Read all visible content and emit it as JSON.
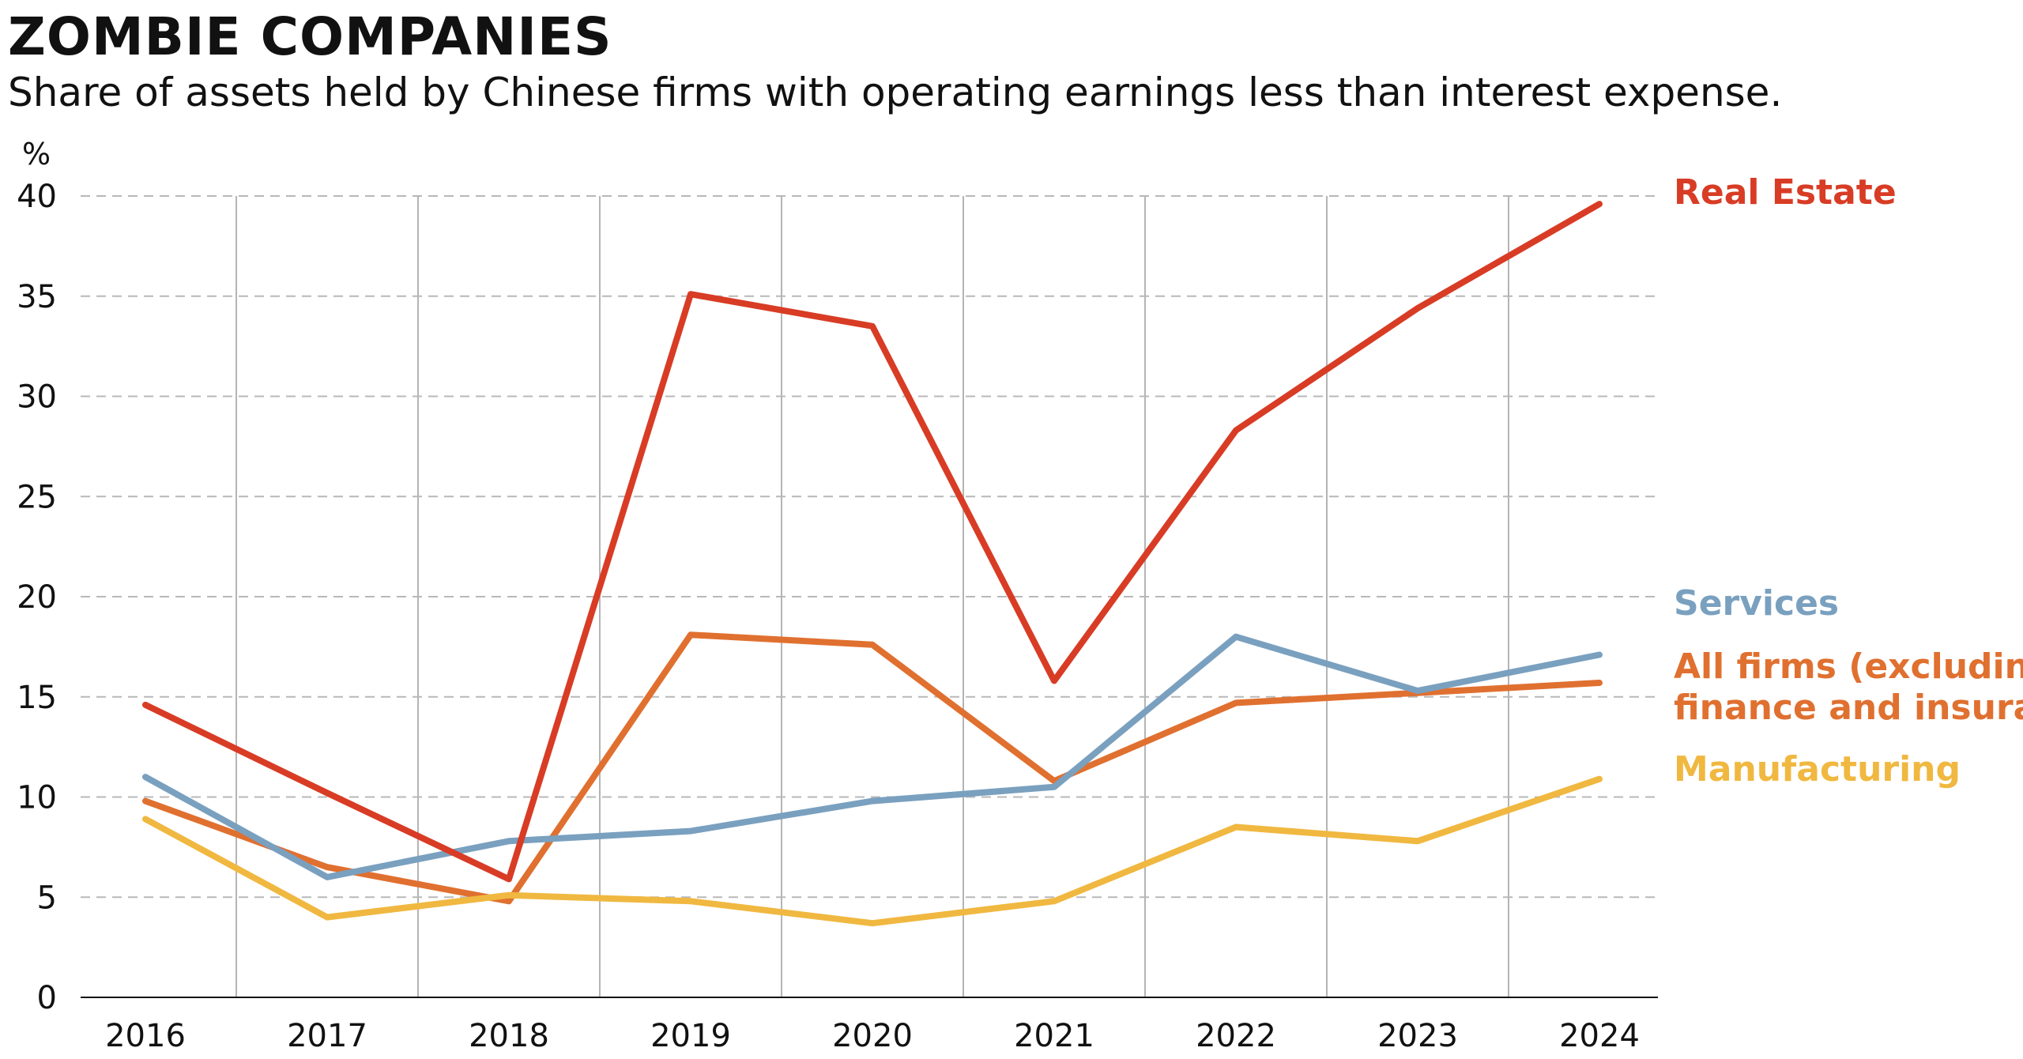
{
  "title": "ZOMBIE COMPANIES",
  "subtitle": "Share of assets held by Chinese firms with operating earnings less than interest expense.",
  "chart_data": {
    "type": "line",
    "title": "ZOMBIE COMPANIES",
    "subtitle": "Share of assets held by Chinese firms with operating earnings less than interest expense.",
    "xlabel": "",
    "ylabel": "%",
    "categories": [
      "2016",
      "2017",
      "2018",
      "2019",
      "2020",
      "2021",
      "2022",
      "2023",
      "2024"
    ],
    "ylim": [
      0,
      40
    ],
    "yticks": [
      "0",
      "5",
      "10",
      "15",
      "20",
      "25",
      "30",
      "35",
      "40"
    ],
    "grid": true,
    "series": [
      {
        "name": "Real Estate",
        "color": "#d83c25",
        "values": [
          14.6,
          10.2,
          5.9,
          35.1,
          33.5,
          15.8,
          28.3,
          34.4,
          39.6
        ],
        "label_lines": [
          "Real Estate"
        ]
      },
      {
        "name": "Services",
        "color": "#7aa0bf",
        "values": [
          11.0,
          6.0,
          7.8,
          8.3,
          9.8,
          10.5,
          18.0,
          15.3,
          17.1
        ],
        "label_lines": [
          "Services"
        ]
      },
      {
        "name": "All firms (excluding finance and insurance)",
        "color": "#e07030",
        "values": [
          9.8,
          6.5,
          4.8,
          18.1,
          17.6,
          10.8,
          14.7,
          15.2,
          15.7
        ],
        "label_lines": [
          "All firms (excluding",
          "finance and insurance)"
        ]
      },
      {
        "name": "Manufacturing",
        "color": "#f0b840",
        "values": [
          8.9,
          4.0,
          5.1,
          4.8,
          3.7,
          4.8,
          8.5,
          7.8,
          10.9
        ],
        "label_lines": [
          "Manufacturing"
        ]
      }
    ]
  }
}
